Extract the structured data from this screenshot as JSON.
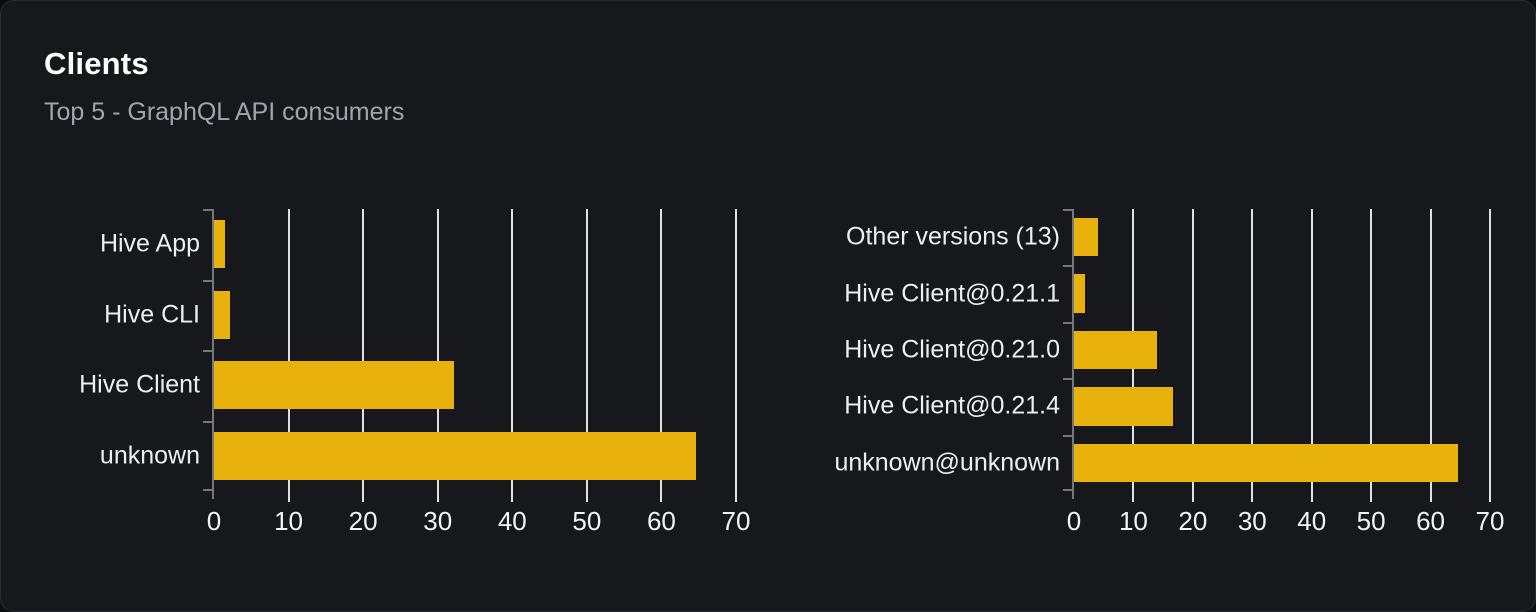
{
  "card": {
    "title": "Clients",
    "subtitle": "Top 5 - GraphQL API consumers"
  },
  "colors": {
    "bar": "#e9b10b",
    "background": "#16181c",
    "page_background": "#0c0d10",
    "card_border": "#272b31",
    "gridline": "#dde1e8",
    "axis": "#73787f",
    "category_label": "#eceef0",
    "tick_label": "#f2f3f5",
    "title": "#ffffff",
    "subtitle": "#a1a6ad"
  },
  "chart_data": [
    {
      "type": "bar",
      "orientation": "horizontal",
      "name": "clients-by-name",
      "title": "",
      "categories": [
        "Hive App",
        "Hive CLI",
        "Hive Client",
        "unknown"
      ],
      "values": [
        1.5,
        2.1,
        32.2,
        64.6
      ],
      "xlim": [
        0,
        70
      ],
      "xticks": [
        0,
        10,
        20,
        30,
        40,
        50,
        60,
        70
      ],
      "grid": true,
      "legend_position": "none"
    },
    {
      "type": "bar",
      "orientation": "horizontal",
      "name": "clients-by-version",
      "title": "",
      "categories": [
        "Other versions (13)",
        "Hive Client@0.21.1",
        "Hive Client@0.21.0",
        "Hive Client@0.21.4",
        "unknown@unknown"
      ],
      "values": [
        4.0,
        1.9,
        13.9,
        16.6,
        64.6
      ],
      "xlim": [
        0,
        70
      ],
      "xticks": [
        0,
        10,
        20,
        30,
        40,
        50,
        60,
        70
      ],
      "grid": true,
      "legend_position": "none"
    }
  ]
}
